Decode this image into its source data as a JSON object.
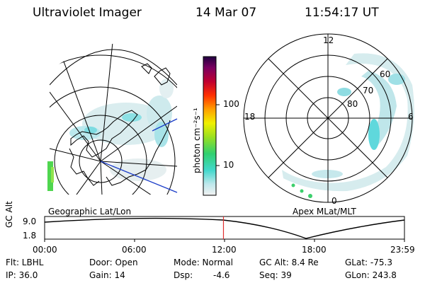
{
  "header": {
    "instrument": "Ultraviolet Imager",
    "date": "14 Mar 07",
    "time": "11:54:17 UT"
  },
  "colorbar": {
    "unit_label": "photon cm⁻²s⁻¹",
    "ticks": [
      "100",
      "10"
    ]
  },
  "left_panel": {
    "caption": "Geographic Lat/Lon"
  },
  "right_panel": {
    "caption": "Apex MLat/MLT",
    "mlt_labels": {
      "top": "12",
      "left": "18",
      "right": "6",
      "bottom": "0"
    },
    "lat_labels": [
      "60",
      "70",
      "80"
    ]
  },
  "timeline": {
    "ylabel": "GC Alt",
    "y_ticks": [
      "9.0",
      "1.8"
    ],
    "x_ticks": [
      "00:00",
      "06:00",
      "12:00",
      "18:00",
      "23:59"
    ],
    "current_time_fraction": 0.497
  },
  "status": {
    "flt": "Flt: LBHL",
    "ip": "IP: 36.0",
    "door": "Door: Open",
    "gain": "Gain: 14",
    "mode": "Mode: Normal",
    "dsp_label": "Dsp:",
    "dsp_value": "-4.6",
    "gc_alt": "GC Alt: 8.4 Re",
    "seq": "Seq: 39",
    "glat": "GLat: -75.3",
    "glon": "GLon: 243.8"
  },
  "colors": {
    "orbit_marker": "#e03030",
    "aurora": "#8fe0e8",
    "aurora_bright": "#3ad0d6",
    "map_line_blue": "#1a3cc8"
  }
}
